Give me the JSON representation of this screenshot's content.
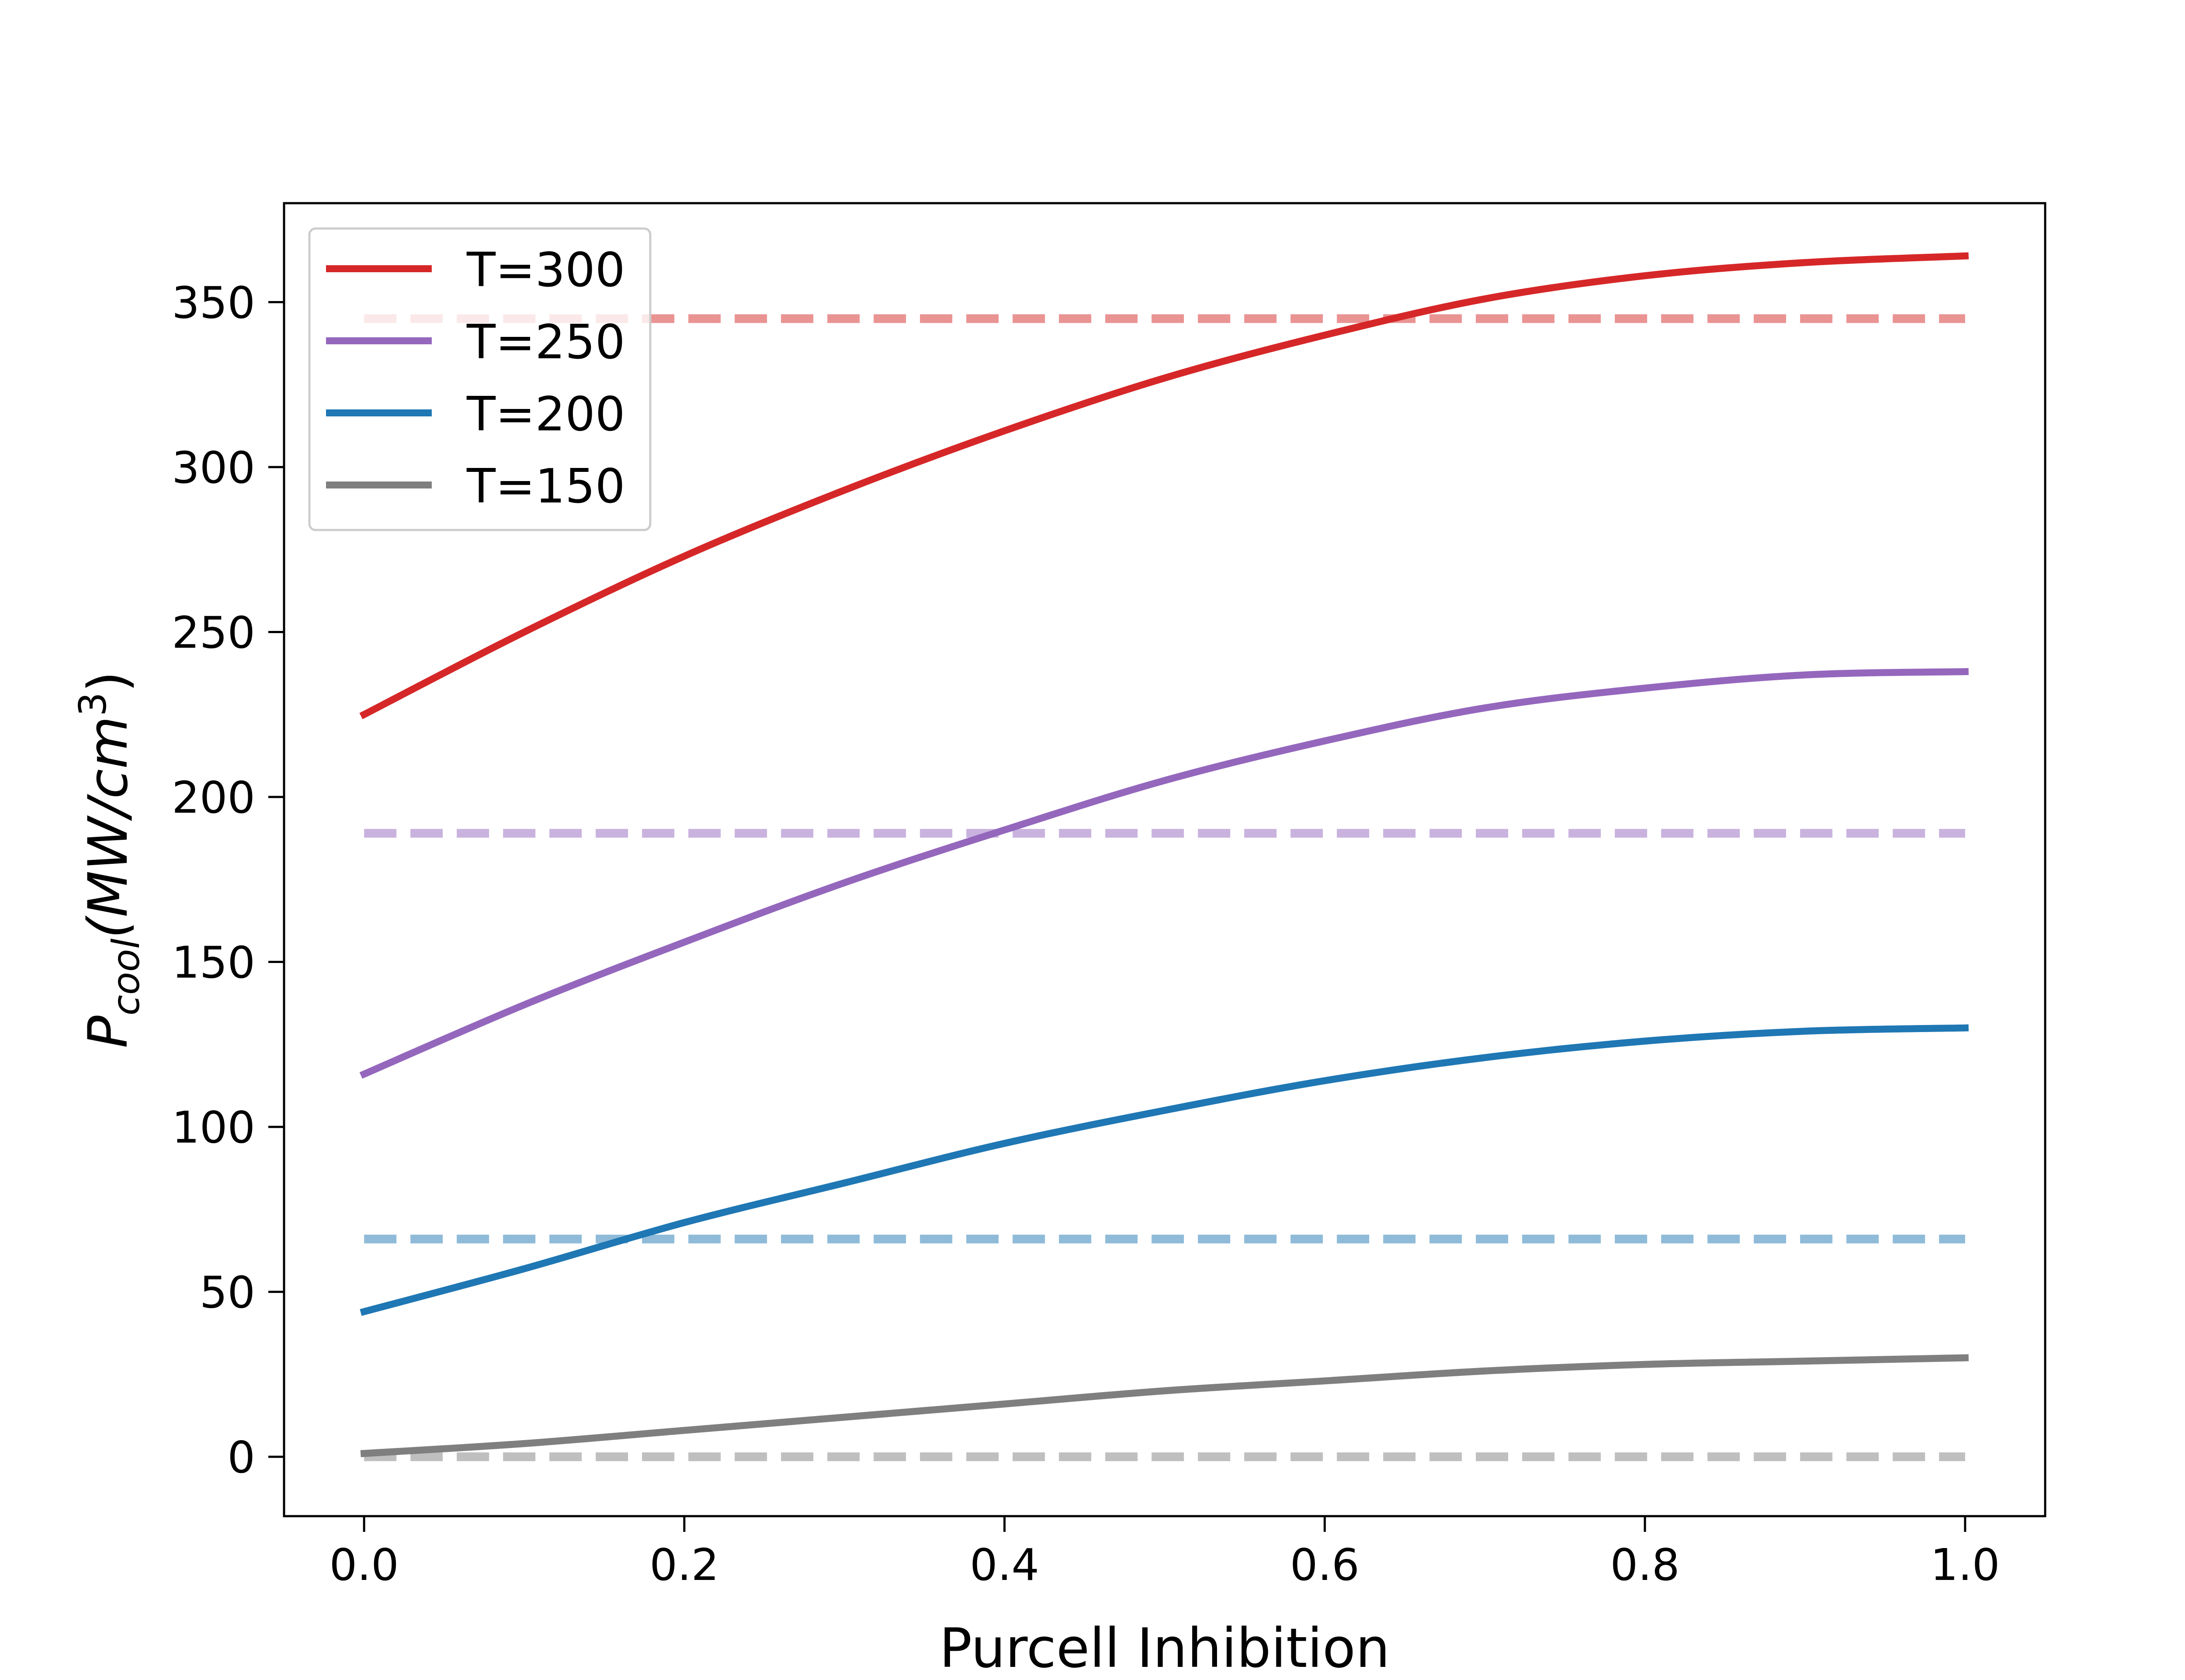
{
  "chart_data": {
    "type": "line",
    "xlabel": "Purcell Inhibition",
    "ylabel": {
      "base": "P",
      "sub": "cool",
      "rest": "(MW/cm",
      "sup": "3",
      "close": ")"
    },
    "xlim": [
      -0.05,
      1.05
    ],
    "ylim": [
      -18,
      380
    ],
    "xticks": [
      0.0,
      0.2,
      0.4,
      0.6,
      0.8,
      1.0
    ],
    "xtick_labels": [
      "0.0",
      "0.2",
      "0.4",
      "0.6",
      "0.8",
      "1.0"
    ],
    "yticks": [
      0,
      50,
      100,
      150,
      200,
      250,
      300,
      350
    ],
    "ytick_labels": [
      "0",
      "50",
      "100",
      "150",
      "200",
      "250",
      "300",
      "350"
    ],
    "grid": false,
    "legend_position": "top-left",
    "x": [
      0.0,
      0.1,
      0.2,
      0.3,
      0.4,
      0.5,
      0.6,
      0.7,
      0.8,
      0.9,
      1.0
    ],
    "series": [
      {
        "name": "T=300",
        "color": "#d62728",
        "style": "solid",
        "values": [
          225,
          250,
          273,
          293,
          311,
          327,
          340,
          351,
          358,
          362,
          364
        ],
        "baseline": 345
      },
      {
        "name": "T=250",
        "color": "#9467bd",
        "style": "solid",
        "values": [
          116,
          137,
          156,
          174,
          190,
          205,
          217,
          227,
          233,
          237,
          238
        ],
        "baseline": 189
      },
      {
        "name": "T=200",
        "color": "#1f77b4",
        "style": "solid",
        "values": [
          44,
          57,
          71,
          83,
          95,
          105,
          114,
          121,
          126,
          129,
          130
        ],
        "baseline": 66
      },
      {
        "name": "T=150",
        "color": "#7f7f7f",
        "style": "solid",
        "values": [
          1,
          4,
          8,
          12,
          16,
          20,
          23,
          26,
          28,
          29,
          30
        ],
        "baseline": 0
      }
    ]
  }
}
